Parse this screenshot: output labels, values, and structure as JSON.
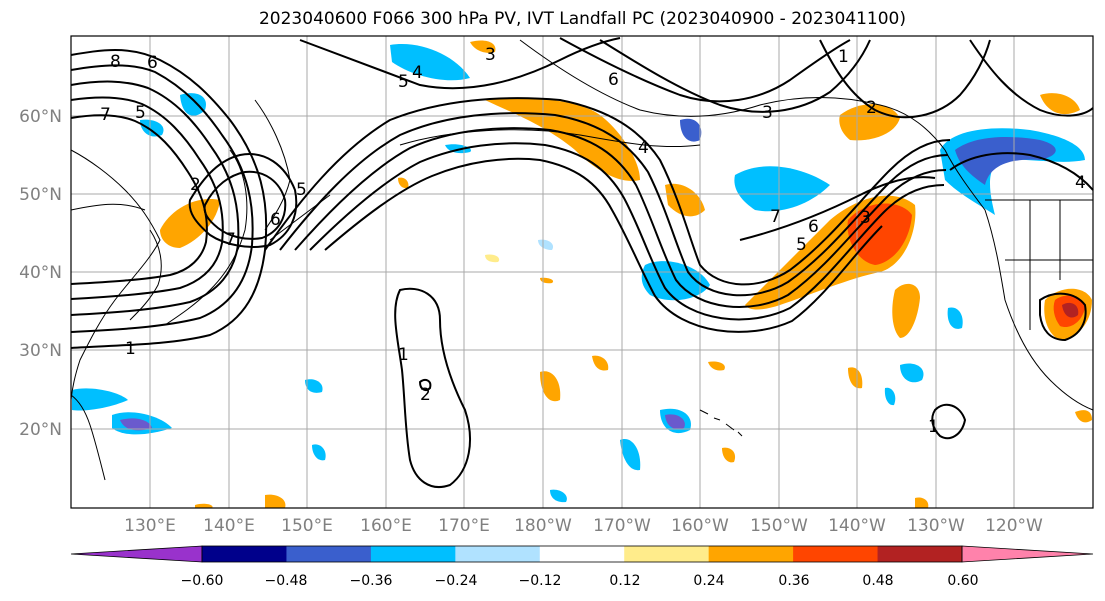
{
  "title": "2023040600 F066 300 hPa PV, IVT Landfall PC (2023040900 - 2023041100)",
  "lat_labels": [
    "60°N",
    "50°N",
    "40°N",
    "30°N",
    "20°N"
  ],
  "lon_labels": [
    "130°E",
    "140°E",
    "150°E",
    "160°E",
    "170°E",
    "180°W",
    "170°W",
    "160°W",
    "150°W",
    "140°W",
    "130°W",
    "120°W"
  ],
  "contour_labels": [
    "8",
    "6",
    "7",
    "5",
    "1",
    "4",
    "5",
    "3",
    "5",
    "6",
    "7",
    "2",
    "6",
    "4",
    "3",
    "2",
    "3",
    "7",
    "5",
    "6",
    "1",
    "1",
    "2",
    "1",
    "4"
  ],
  "colorbar": {
    "ticks": [
      "−0.60",
      "−0.48",
      "−0.36",
      "−0.24",
      "−0.12",
      "0.12",
      "0.24",
      "0.36",
      "0.48",
      "0.60"
    ],
    "colors": [
      "#9932cc",
      "#00008b",
      "#3a5fcd",
      "#00bfff",
      "#b0e2ff",
      "#ffffff",
      "#ffec8b",
      "#ffa500",
      "#ff4500",
      "#b22222",
      "#ff82ab"
    ]
  },
  "colors": {
    "pv_contour": "#000000",
    "gridline": "#a9a9a9",
    "coastline": "#000000"
  }
}
